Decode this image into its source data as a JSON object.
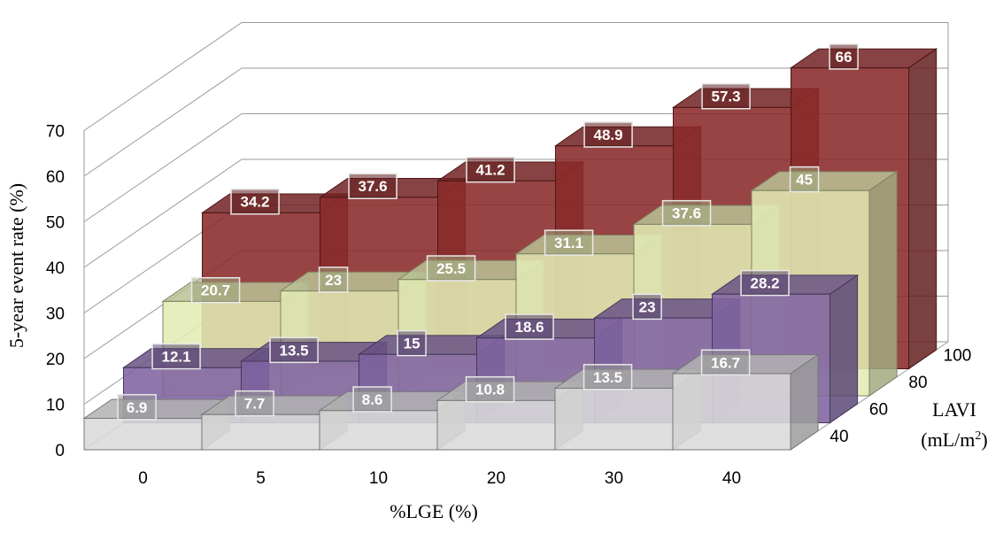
{
  "chart_data": {
    "type": "bar",
    "title": "",
    "xlabel": "%LGE (%)",
    "ylabel": "5-year event rate (%)",
    "zlabel": "LAVI",
    "zunit_prefix": "(mL/m",
    "zunit_sup": "2",
    "zunit_suffix": ")",
    "ylim": [
      0,
      70
    ],
    "yticks": [
      "0",
      "10",
      "20",
      "30",
      "40",
      "50",
      "60",
      "70"
    ],
    "categories": [
      "0",
      "5",
      "10",
      "20",
      "30",
      "40"
    ],
    "series": [
      {
        "name": "40",
        "values": [
          6.9,
          7.7,
          8.6,
          10.8,
          13.5,
          16.7
        ],
        "color": "#d9d9d9"
      },
      {
        "name": "60",
        "values": [
          12.1,
          13.5,
          15,
          18.6,
          23,
          28.2
        ],
        "color": "#8064a2"
      },
      {
        "name": "80",
        "values": [
          20.7,
          23,
          25.5,
          31.1,
          37.6,
          45
        ],
        "color": "#e2ecb4"
      },
      {
        "name": "100",
        "values": [
          34.2,
          37.6,
          41.2,
          48.9,
          57.3,
          66
        ],
        "color": "#8b2a2a"
      }
    ],
    "grid": true,
    "view": "3d"
  }
}
